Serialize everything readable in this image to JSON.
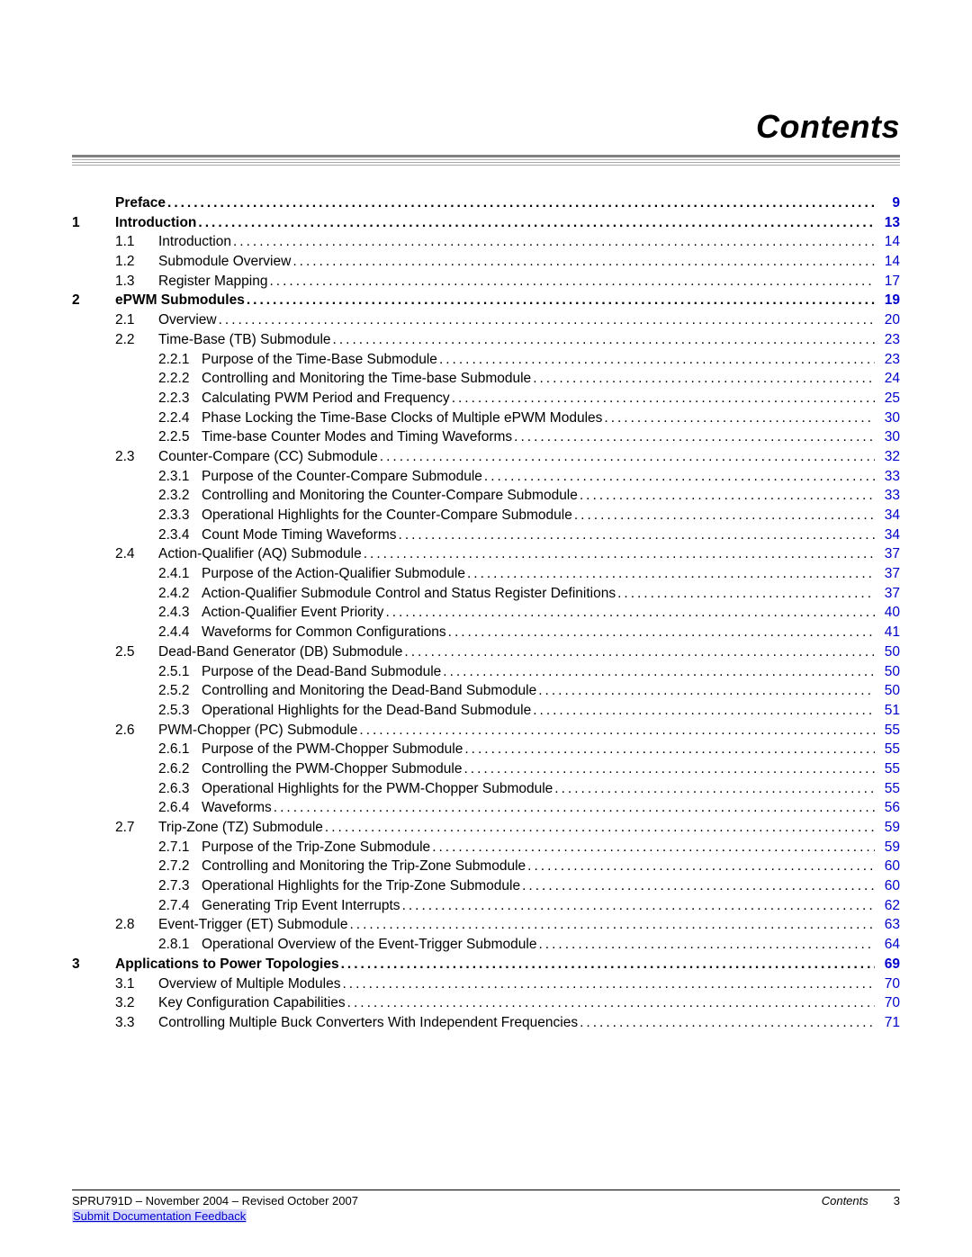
{
  "title": "Contents",
  "link_color": "#0000cc",
  "entries": [
    {
      "level": 0,
      "num": "",
      "sub": "",
      "subsub": "",
      "text": "Preface",
      "page": "9",
      "bold": true,
      "pglink": true,
      "indent": 0
    },
    {
      "level": 0,
      "num": "1",
      "sub": "",
      "subsub": "",
      "text": "Introduction",
      "page": "13",
      "bold": true,
      "pglink": true,
      "indent": 0
    },
    {
      "level": 1,
      "num": "",
      "sub": "1.1",
      "subsub": "",
      "text": "Introduction",
      "page": "14",
      "bold": false,
      "pglink": true,
      "indent": 1
    },
    {
      "level": 1,
      "num": "",
      "sub": "1.2",
      "subsub": "",
      "text": "Submodule Overview",
      "page": "14",
      "bold": false,
      "pglink": true,
      "indent": 1
    },
    {
      "level": 1,
      "num": "",
      "sub": "1.3",
      "subsub": "",
      "text": "Register Mapping",
      "page": "17",
      "bold": false,
      "pglink": true,
      "indent": 1
    },
    {
      "level": 0,
      "num": "2",
      "sub": "",
      "subsub": "",
      "text": "ePWM Submodules",
      "page": "19",
      "bold": true,
      "pglink": true,
      "indent": 0
    },
    {
      "level": 1,
      "num": "",
      "sub": "2.1",
      "subsub": "",
      "text": "Overview",
      "page": "20",
      "bold": false,
      "pglink": true,
      "indent": 1
    },
    {
      "level": 1,
      "num": "",
      "sub": "2.2",
      "subsub": "",
      "text": "Time-Base (TB) Submodule",
      "page": "23",
      "bold": false,
      "pglink": true,
      "indent": 1
    },
    {
      "level": 2,
      "num": "",
      "sub": "",
      "subsub": "2.2.1",
      "text": "Purpose of the Time-Base Submodule",
      "page": "23",
      "bold": false,
      "pglink": true,
      "indent": 2
    },
    {
      "level": 2,
      "num": "",
      "sub": "",
      "subsub": "2.2.2",
      "text": "Controlling and Monitoring the Time-base Submodule",
      "page": "24",
      "bold": false,
      "pglink": true,
      "indent": 2
    },
    {
      "level": 2,
      "num": "",
      "sub": "",
      "subsub": "2.2.3",
      "text": "Calculating PWM Period and Frequency",
      "page": "25",
      "bold": false,
      "pglink": true,
      "indent": 2
    },
    {
      "level": 2,
      "num": "",
      "sub": "",
      "subsub": "2.2.4",
      "text": "Phase Locking the Time-Base Clocks of Multiple ePWM Modules",
      "page": "30",
      "bold": false,
      "pglink": true,
      "indent": 2
    },
    {
      "level": 2,
      "num": "",
      "sub": "",
      "subsub": "2.2.5",
      "text": "Time-base Counter Modes and Timing Waveforms",
      "page": "30",
      "bold": false,
      "pglink": true,
      "indent": 2
    },
    {
      "level": 1,
      "num": "",
      "sub": "2.3",
      "subsub": "",
      "text": "Counter-Compare (CC) Submodule",
      "page": "32",
      "bold": false,
      "pglink": true,
      "indent": 1
    },
    {
      "level": 2,
      "num": "",
      "sub": "",
      "subsub": "2.3.1",
      "text": "Purpose of the Counter-Compare Submodule",
      "page": "33",
      "bold": false,
      "pglink": true,
      "indent": 2
    },
    {
      "level": 2,
      "num": "",
      "sub": "",
      "subsub": "2.3.2",
      "text": "Controlling and Monitoring the Counter-Compare Submodule",
      "page": "33",
      "bold": false,
      "pglink": true,
      "indent": 2
    },
    {
      "level": 2,
      "num": "",
      "sub": "",
      "subsub": "2.3.3",
      "text": "Operational Highlights for the Counter-Compare Submodule",
      "page": "34",
      "bold": false,
      "pglink": true,
      "indent": 2
    },
    {
      "level": 2,
      "num": "",
      "sub": "",
      "subsub": "2.3.4",
      "text": "Count Mode Timing Waveforms",
      "page": "34",
      "bold": false,
      "pglink": true,
      "indent": 2
    },
    {
      "level": 1,
      "num": "",
      "sub": "2.4",
      "subsub": "",
      "text": "Action-Qualifier (AQ) Submodule",
      "page": "37",
      "bold": false,
      "pglink": true,
      "indent": 1
    },
    {
      "level": 2,
      "num": "",
      "sub": "",
      "subsub": "2.4.1",
      "text": "Purpose of the Action-Qualifier Submodule",
      "page": "37",
      "bold": false,
      "pglink": true,
      "indent": 2
    },
    {
      "level": 2,
      "num": "",
      "sub": "",
      "subsub": "2.4.2",
      "text": "Action-Qualifier Submodule Control and Status Register Definitions",
      "page": "37",
      "bold": false,
      "pglink": true,
      "indent": 2
    },
    {
      "level": 2,
      "num": "",
      "sub": "",
      "subsub": "2.4.3",
      "text": "Action-Qualifier Event Priority",
      "page": "40",
      "bold": false,
      "pglink": true,
      "indent": 2
    },
    {
      "level": 2,
      "num": "",
      "sub": "",
      "subsub": "2.4.4",
      "text": "Waveforms for Common Configurations",
      "page": "41",
      "bold": false,
      "pglink": true,
      "indent": 2
    },
    {
      "level": 1,
      "num": "",
      "sub": "2.5",
      "subsub": "",
      "text": "Dead-Band Generator (DB) Submodule",
      "page": "50",
      "bold": false,
      "pglink": true,
      "indent": 1
    },
    {
      "level": 2,
      "num": "",
      "sub": "",
      "subsub": "2.5.1",
      "text": "Purpose of the Dead-Band Submodule",
      "page": "50",
      "bold": false,
      "pglink": true,
      "indent": 2
    },
    {
      "level": 2,
      "num": "",
      "sub": "",
      "subsub": "2.5.2",
      "text": "Controlling and Monitoring the Dead-Band Submodule",
      "page": "50",
      "bold": false,
      "pglink": true,
      "indent": 2
    },
    {
      "level": 2,
      "num": "",
      "sub": "",
      "subsub": "2.5.3",
      "text": "Operational Highlights for the Dead-Band Submodule",
      "page": "51",
      "bold": false,
      "pglink": true,
      "indent": 2
    },
    {
      "level": 1,
      "num": "",
      "sub": "2.6",
      "subsub": "",
      "text": "PWM-Chopper (PC) Submodule",
      "page": "55",
      "bold": false,
      "pglink": true,
      "indent": 1
    },
    {
      "level": 2,
      "num": "",
      "sub": "",
      "subsub": "2.6.1",
      "text": "Purpose of the PWM-Chopper Submodule",
      "page": "55",
      "bold": false,
      "pglink": true,
      "indent": 2
    },
    {
      "level": 2,
      "num": "",
      "sub": "",
      "subsub": "2.6.2",
      "text": "Controlling the PWM-Chopper Submodule",
      "page": "55",
      "bold": false,
      "pglink": true,
      "indent": 2
    },
    {
      "level": 2,
      "num": "",
      "sub": "",
      "subsub": "2.6.3",
      "text": "Operational Highlights for the PWM-Chopper Submodule",
      "page": "55",
      "bold": false,
      "pglink": true,
      "indent": 2
    },
    {
      "level": 2,
      "num": "",
      "sub": "",
      "subsub": "2.6.4",
      "text": "Waveforms",
      "page": "56",
      "bold": false,
      "pglink": true,
      "indent": 2
    },
    {
      "level": 1,
      "num": "",
      "sub": "2.7",
      "subsub": "",
      "text": "Trip-Zone (TZ) Submodule",
      "page": "59",
      "bold": false,
      "pglink": true,
      "indent": 1
    },
    {
      "level": 2,
      "num": "",
      "sub": "",
      "subsub": "2.7.1",
      "text": "Purpose of the Trip-Zone Submodule",
      "page": "59",
      "bold": false,
      "pglink": true,
      "indent": 2
    },
    {
      "level": 2,
      "num": "",
      "sub": "",
      "subsub": "2.7.2",
      "text": "Controlling and Monitoring the Trip-Zone Submodule",
      "page": "60",
      "bold": false,
      "pglink": true,
      "indent": 2
    },
    {
      "level": 2,
      "num": "",
      "sub": "",
      "subsub": "2.7.3",
      "text": "Operational Highlights for the Trip-Zone Submodule",
      "page": "60",
      "bold": false,
      "pglink": true,
      "indent": 2
    },
    {
      "level": 2,
      "num": "",
      "sub": "",
      "subsub": "2.7.4",
      "text": "Generating Trip Event Interrupts",
      "page": "62",
      "bold": false,
      "pglink": true,
      "indent": 2
    },
    {
      "level": 1,
      "num": "",
      "sub": "2.8",
      "subsub": "",
      "text": "Event-Trigger (ET) Submodule",
      "page": "63",
      "bold": false,
      "pglink": true,
      "indent": 1
    },
    {
      "level": 2,
      "num": "",
      "sub": "",
      "subsub": "2.8.1",
      "text": "Operational Overview of the Event-Trigger Submodule",
      "page": "64",
      "bold": false,
      "pglink": true,
      "indent": 2
    },
    {
      "level": 0,
      "num": "3",
      "sub": "",
      "subsub": "",
      "text": "Applications to Power Topologies",
      "page": "69",
      "bold": true,
      "pglink": true,
      "indent": 0
    },
    {
      "level": 1,
      "num": "",
      "sub": "3.1",
      "subsub": "",
      "text": "Overview of Multiple Modules",
      "page": "70",
      "bold": false,
      "pglink": true,
      "indent": 1
    },
    {
      "level": 1,
      "num": "",
      "sub": "3.2",
      "subsub": "",
      "text": "Key Configuration Capabilities",
      "page": "70",
      "bold": false,
      "pglink": true,
      "indent": 1
    },
    {
      "level": 1,
      "num": "",
      "sub": "3.3",
      "subsub": "",
      "text": "Controlling Multiple Buck Converters With Independent Frequencies",
      "page": "71",
      "bold": false,
      "pglink": true,
      "indent": 1
    }
  ],
  "footer": {
    "docid": "SPRU791D – November 2004 – Revised October 2007",
    "section": "Contents",
    "pagenum": "3",
    "feedback": "Submit Documentation Feedback"
  }
}
